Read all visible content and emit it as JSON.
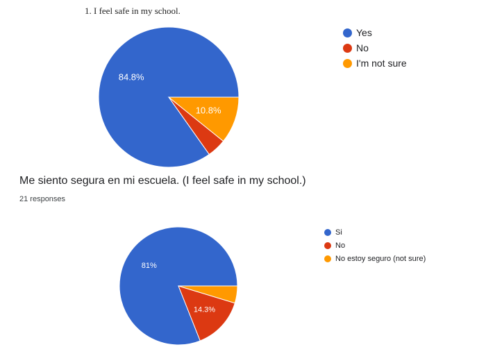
{
  "chart_data": [
    {
      "type": "pie",
      "title": "1. I feel safe in my school.",
      "categories": [
        "Yes",
        "No",
        "I'm not sure"
      ],
      "values": [
        84.8,
        4.4,
        10.8
      ],
      "labels": [
        "84.8%",
        "",
        "10.8%"
      ],
      "colors": [
        "#3366cc",
        "#dc3912",
        "#ff9900"
      ],
      "legend": "right"
    },
    {
      "type": "pie",
      "title": "Me siento segura en mi escuela. (I feel safe in my school.)",
      "subtitle": "21 responses",
      "categories": [
        "Si",
        "No",
        "No estoy seguro (not sure)"
      ],
      "values": [
        81,
        14.3,
        4.7
      ],
      "labels": [
        "81%",
        "14.3%",
        ""
      ],
      "colors": [
        "#3366cc",
        "#dc3912",
        "#ff9900"
      ],
      "legend": "right"
    }
  ]
}
